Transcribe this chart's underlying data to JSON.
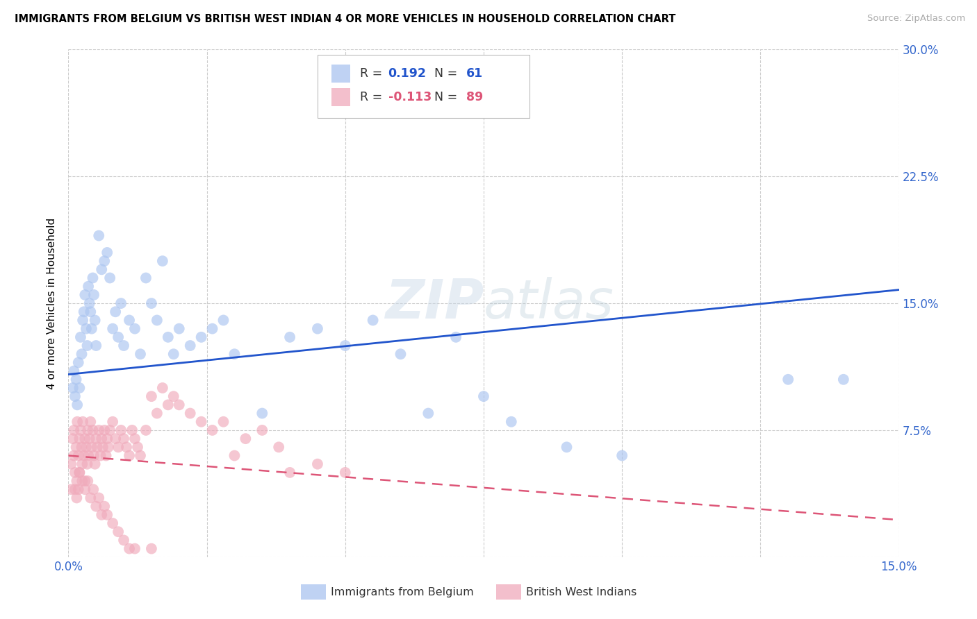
{
  "title": "IMMIGRANTS FROM BELGIUM VS BRITISH WEST INDIAN 4 OR MORE VEHICLES IN HOUSEHOLD CORRELATION CHART",
  "source": "Source: ZipAtlas.com",
  "ylabel": "4 or more Vehicles in Household",
  "xlim": [
    0.0,
    0.15
  ],
  "ylim": [
    0.0,
    0.3
  ],
  "xticks": [
    0.0,
    0.025,
    0.05,
    0.075,
    0.1,
    0.125,
    0.15
  ],
  "xticklabels": [
    "0.0%",
    "",
    "",
    "",
    "",
    "",
    "15.0%"
  ],
  "yticks": [
    0.0,
    0.075,
    0.15,
    0.225,
    0.3
  ],
  "yticklabels_right": [
    "",
    "7.5%",
    "15.0%",
    "22.5%",
    "30.0%"
  ],
  "blue_R": 0.192,
  "blue_N": 61,
  "pink_R": -0.113,
  "pink_N": 89,
  "blue_color": "#aac4f0",
  "pink_color": "#f0aabb",
  "blue_line_color": "#2255cc",
  "pink_line_color": "#dd5577",
  "watermark_text": "ZIPatlas",
  "legend_label_blue": "Immigrants from Belgium",
  "legend_label_pink": "British West Indians",
  "blue_line_x0": 0.0,
  "blue_line_y0": 0.108,
  "blue_line_x1": 0.15,
  "blue_line_y1": 0.158,
  "pink_line_x0": 0.0,
  "pink_line_y0": 0.06,
  "pink_line_x1": 0.15,
  "pink_line_y1": 0.022,
  "blue_scatter_x": [
    0.0008,
    0.001,
    0.0012,
    0.0014,
    0.0016,
    0.0018,
    0.002,
    0.0022,
    0.0024,
    0.0026,
    0.0028,
    0.003,
    0.0032,
    0.0034,
    0.0036,
    0.0038,
    0.004,
    0.0042,
    0.0044,
    0.0046,
    0.0048,
    0.005,
    0.0055,
    0.006,
    0.0065,
    0.007,
    0.0075,
    0.008,
    0.0085,
    0.009,
    0.0095,
    0.01,
    0.011,
    0.012,
    0.013,
    0.014,
    0.015,
    0.016,
    0.017,
    0.018,
    0.019,
    0.02,
    0.022,
    0.024,
    0.026,
    0.028,
    0.03,
    0.035,
    0.04,
    0.045,
    0.05,
    0.055,
    0.06,
    0.065,
    0.07,
    0.075,
    0.08,
    0.09,
    0.1,
    0.13,
    0.14
  ],
  "blue_scatter_y": [
    0.1,
    0.11,
    0.095,
    0.105,
    0.09,
    0.115,
    0.1,
    0.13,
    0.12,
    0.14,
    0.145,
    0.155,
    0.135,
    0.125,
    0.16,
    0.15,
    0.145,
    0.135,
    0.165,
    0.155,
    0.14,
    0.125,
    0.19,
    0.17,
    0.175,
    0.18,
    0.165,
    0.135,
    0.145,
    0.13,
    0.15,
    0.125,
    0.14,
    0.135,
    0.12,
    0.165,
    0.15,
    0.14,
    0.175,
    0.13,
    0.12,
    0.135,
    0.125,
    0.13,
    0.135,
    0.14,
    0.12,
    0.085,
    0.13,
    0.135,
    0.125,
    0.14,
    0.12,
    0.085,
    0.13,
    0.095,
    0.08,
    0.065,
    0.06,
    0.105,
    0.105
  ],
  "pink_scatter_x": [
    0.0005,
    0.0005,
    0.0008,
    0.001,
    0.001,
    0.0012,
    0.0014,
    0.0015,
    0.0016,
    0.0018,
    0.0018,
    0.002,
    0.002,
    0.0022,
    0.0024,
    0.0025,
    0.0026,
    0.0028,
    0.003,
    0.003,
    0.0032,
    0.0034,
    0.0035,
    0.0036,
    0.0038,
    0.004,
    0.0042,
    0.0044,
    0.0046,
    0.0048,
    0.005,
    0.0052,
    0.0055,
    0.0058,
    0.006,
    0.0062,
    0.0065,
    0.0068,
    0.007,
    0.0072,
    0.0075,
    0.008,
    0.0085,
    0.009,
    0.0095,
    0.01,
    0.0105,
    0.011,
    0.0115,
    0.012,
    0.0125,
    0.013,
    0.014,
    0.015,
    0.016,
    0.017,
    0.018,
    0.019,
    0.02,
    0.022,
    0.024,
    0.026,
    0.028,
    0.03,
    0.032,
    0.035,
    0.038,
    0.04,
    0.045,
    0.05,
    0.0012,
    0.0015,
    0.002,
    0.0025,
    0.003,
    0.0035,
    0.004,
    0.0045,
    0.005,
    0.0055,
    0.006,
    0.0065,
    0.007,
    0.008,
    0.009,
    0.01,
    0.011,
    0.012,
    0.015
  ],
  "pink_scatter_y": [
    0.055,
    0.04,
    0.07,
    0.06,
    0.075,
    0.05,
    0.065,
    0.045,
    0.08,
    0.06,
    0.04,
    0.07,
    0.05,
    0.075,
    0.065,
    0.055,
    0.08,
    0.06,
    0.07,
    0.045,
    0.065,
    0.055,
    0.075,
    0.06,
    0.07,
    0.08,
    0.065,
    0.075,
    0.06,
    0.055,
    0.07,
    0.065,
    0.075,
    0.06,
    0.07,
    0.065,
    0.075,
    0.06,
    0.07,
    0.065,
    0.075,
    0.08,
    0.07,
    0.065,
    0.075,
    0.07,
    0.065,
    0.06,
    0.075,
    0.07,
    0.065,
    0.06,
    0.075,
    0.095,
    0.085,
    0.1,
    0.09,
    0.095,
    0.09,
    0.085,
    0.08,
    0.075,
    0.08,
    0.06,
    0.07,
    0.075,
    0.065,
    0.05,
    0.055,
    0.05,
    0.04,
    0.035,
    0.05,
    0.045,
    0.04,
    0.045,
    0.035,
    0.04,
    0.03,
    0.035,
    0.025,
    0.03,
    0.025,
    0.02,
    0.015,
    0.01,
    0.005,
    0.005,
    0.005
  ]
}
